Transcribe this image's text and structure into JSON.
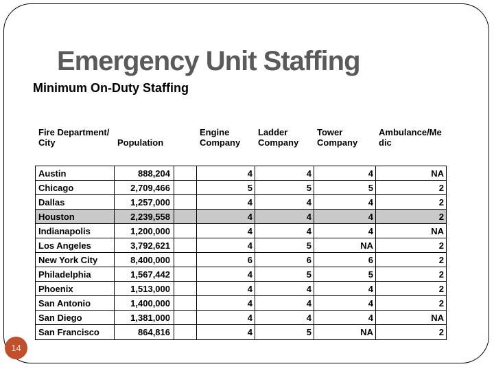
{
  "slide": {
    "title": "Emergency Unit Staffing",
    "subtitle": "Minimum On-Duty Staffing",
    "page_number": "14"
  },
  "colors": {
    "title_text": "#5A5A5A",
    "page_badge": "#C14F2B",
    "page_badge_text": "#F5E9DE",
    "highlighted_row": "#C9C9C9",
    "table_border": "#000000"
  },
  "table": {
    "headers": [
      {
        "line1": "Fire Department/",
        "line2": "City"
      },
      {
        "line1": "",
        "line2": "Population"
      },
      {
        "line1": "Engine",
        "line2": "Company"
      },
      {
        "line1": "Ladder",
        "line2": "Company"
      },
      {
        "line1": "Tower",
        "line2": "Company"
      },
      {
        "line1": "Ambulance/Me",
        "line2": "dic"
      }
    ],
    "rows": [
      {
        "city": "Austin",
        "population": "888,204",
        "engine": "4",
        "ladder": "4",
        "tower": "4",
        "ambulance": "NA",
        "highlighted": false
      },
      {
        "city": "Chicago",
        "population": "2,709,466",
        "engine": "5",
        "ladder": "5",
        "tower": "5",
        "ambulance": "2",
        "highlighted": false
      },
      {
        "city": "Dallas",
        "population": "1,257,000",
        "engine": "4",
        "ladder": "4",
        "tower": "4",
        "ambulance": "2",
        "highlighted": false
      },
      {
        "city": "Houston",
        "population": "2,239,558",
        "engine": "4",
        "ladder": "4",
        "tower": "4",
        "ambulance": "2",
        "highlighted": true
      },
      {
        "city": "Indianapolis",
        "population": "1,200,000",
        "engine": "4",
        "ladder": "4",
        "tower": "4",
        "ambulance": "NA",
        "highlighted": false
      },
      {
        "city": "Los Angeles",
        "population": "3,792,621",
        "engine": "4",
        "ladder": "5",
        "tower": "NA",
        "ambulance": "2",
        "highlighted": false
      },
      {
        "city": "New York City",
        "population": "8,400,000",
        "engine": "6",
        "ladder": "6",
        "tower": "6",
        "ambulance": "2",
        "highlighted": false
      },
      {
        "city": "Philadelphia",
        "population": "1,567,442",
        "engine": "4",
        "ladder": "5",
        "tower": "5",
        "ambulance": "2",
        "highlighted": false
      },
      {
        "city": "Phoenix",
        "population": "1,513,000",
        "engine": "4",
        "ladder": "4",
        "tower": "4",
        "ambulance": "2",
        "highlighted": false
      },
      {
        "city": "San Antonio",
        "population": "1,400,000",
        "engine": "4",
        "ladder": "4",
        "tower": "4",
        "ambulance": "2",
        "highlighted": false
      },
      {
        "city": "San Diego",
        "population": "1,381,000",
        "engine": "4",
        "ladder": "4",
        "tower": "4",
        "ambulance": "NA",
        "highlighted": false
      },
      {
        "city": "San Francisco",
        "population": "864,816",
        "engine": "4",
        "ladder": "5",
        "tower": "NA",
        "ambulance": "2",
        "highlighted": false
      }
    ]
  }
}
